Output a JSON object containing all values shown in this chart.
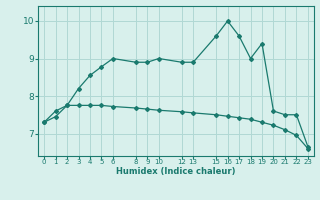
{
  "line1_x": [
    0,
    1,
    2,
    3,
    4,
    5,
    6,
    8,
    9,
    10,
    12,
    13,
    15,
    16,
    17,
    18,
    19,
    20,
    21,
    22,
    23
  ],
  "line1_y": [
    7.3,
    7.45,
    7.75,
    8.2,
    8.55,
    8.78,
    9.0,
    8.9,
    8.9,
    9.0,
    8.9,
    8.9,
    9.6,
    10.0,
    9.6,
    9.0,
    9.4,
    7.6,
    7.5,
    7.5,
    6.65
  ],
  "line2_x": [
    0,
    1,
    2,
    3,
    4,
    5,
    6,
    8,
    9,
    10,
    12,
    13,
    15,
    16,
    17,
    18,
    19,
    20,
    21,
    22,
    23
  ],
  "line2_y": [
    7.3,
    7.6,
    7.75,
    7.75,
    7.75,
    7.75,
    7.72,
    7.68,
    7.65,
    7.62,
    7.58,
    7.55,
    7.5,
    7.46,
    7.42,
    7.38,
    7.3,
    7.22,
    7.1,
    6.95,
    6.6
  ],
  "line_color": "#1a7a6e",
  "bg_color": "#d8f0ec",
  "grid_color": "#b0d8d4",
  "xlabel": "Humidex (Indice chaleur)",
  "xtick_positions": [
    0,
    1,
    2,
    3,
    4,
    5,
    6,
    8,
    9,
    10,
    12,
    13,
    15,
    16,
    17,
    18,
    19,
    20,
    21,
    22,
    23
  ],
  "xtick_labels": [
    "0",
    "1",
    "2",
    "3",
    "4",
    "5",
    "6",
    "8",
    "9",
    "10",
    "12",
    "13",
    "15",
    "16",
    "17",
    "18",
    "19",
    "20",
    "21",
    "22",
    "23"
  ],
  "yticks": [
    7,
    8,
    9,
    10
  ],
  "ylim": [
    6.4,
    10.4
  ],
  "xlim": [
    -0.5,
    23.5
  ]
}
